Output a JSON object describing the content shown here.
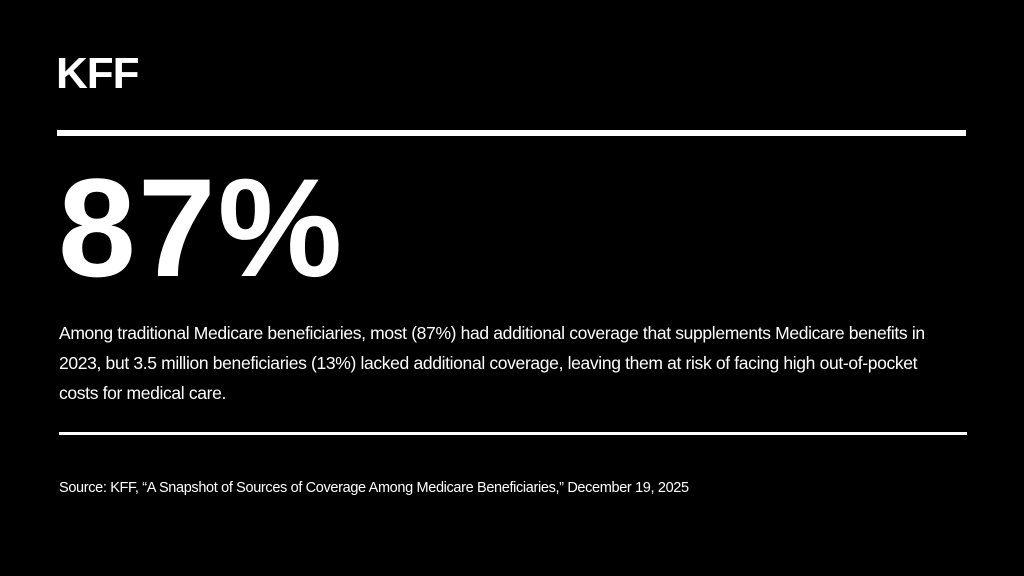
{
  "logo": {
    "text": "KFF"
  },
  "stat": {
    "value": "87%"
  },
  "description": "Among traditional Medicare beneficiaries, most (87%) had additional coverage that supplements Medicare benefits in 2023, but 3.5 million beneficiaries (13%) lacked additional coverage, leaving them at risk of facing high out-of-pocket costs for medical care.",
  "source": "Source: KFF, “A Snapshot of Sources of Coverage Among Medicare Beneficiaries,” December 19, 2025",
  "colors": {
    "background": "#000000",
    "text": "#ffffff"
  }
}
